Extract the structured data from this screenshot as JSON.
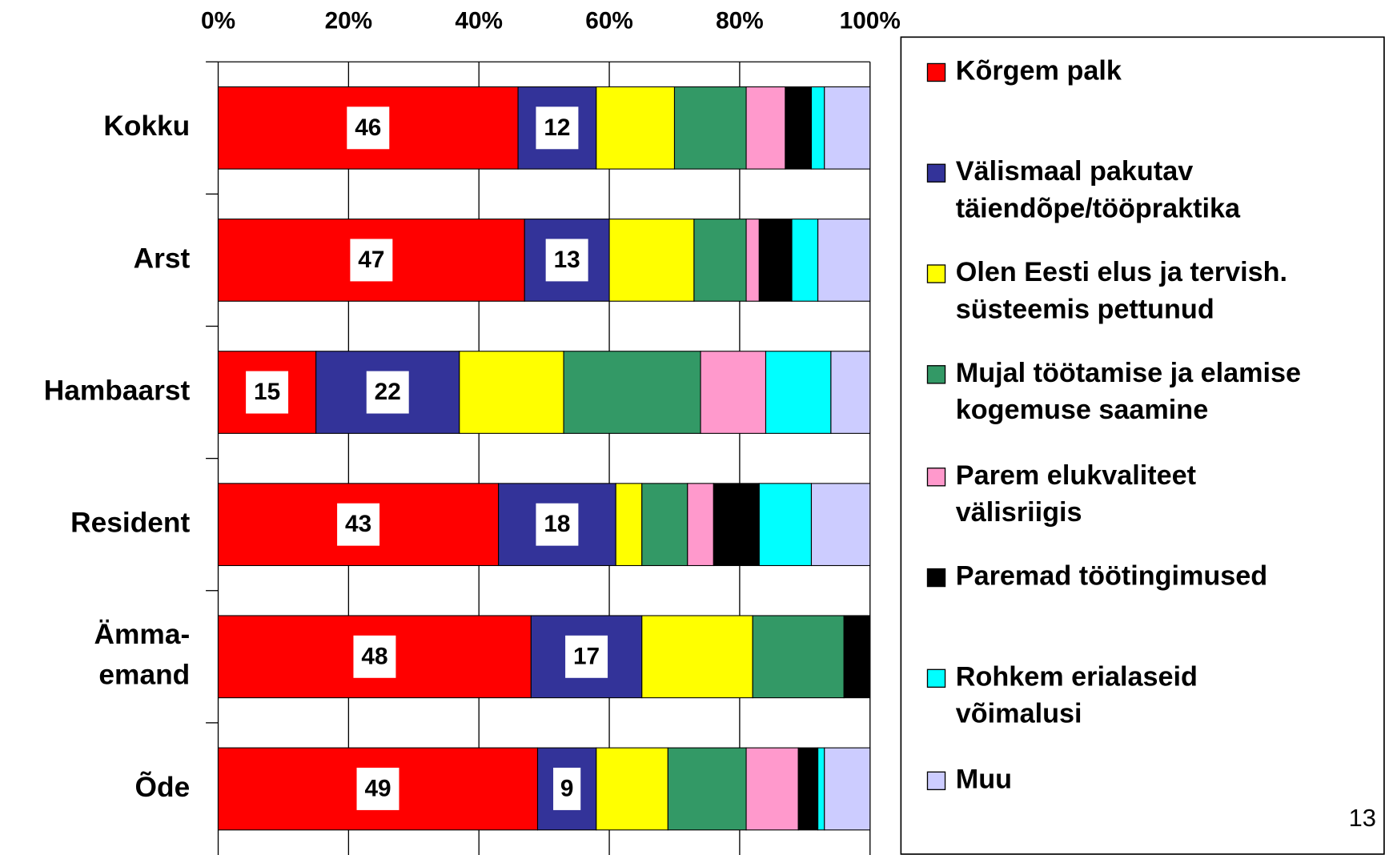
{
  "chart_data": {
    "type": "stacked-bar-horizontal",
    "categories": [
      "Kokku",
      "Arst",
      "Hambaarst",
      "Resident",
      "Ämma-\nemand",
      "Õde"
    ],
    "series": [
      {
        "name": "Kõrgem palk",
        "color": "#ff0000",
        "values": [
          46,
          47,
          15,
          43,
          48,
          49
        ],
        "data_labels": true
      },
      {
        "name": "Välismaal pakutav\ntäiendõpe/tööpraktika",
        "color": "#333399",
        "values": [
          12,
          13,
          22,
          18,
          17,
          9
        ],
        "data_labels": true
      },
      {
        "name": "Olen Eesti elus ja tervish.\nsüsteemis pettunud",
        "color": "#ffff00",
        "values": [
          12,
          13,
          16,
          4,
          17,
          11
        ]
      },
      {
        "name": "Mujal töötamise ja elamise\nkogemuse saamine",
        "color": "#339966",
        "values": [
          11,
          8,
          21,
          7,
          14,
          12
        ]
      },
      {
        "name": "Parem elukvaliteet\nvälisriigis",
        "color": "#ff99cc",
        "values": [
          6,
          2,
          10,
          4,
          0,
          8
        ]
      },
      {
        "name": "Paremad töötingimused",
        "color": "#000000",
        "values": [
          4,
          5,
          0,
          7,
          4,
          3
        ]
      },
      {
        "name": "Rohkem erialaseid\nvõimalusi",
        "color": "#00ffff",
        "values": [
          2,
          4,
          10,
          8,
          0,
          1
        ]
      },
      {
        "name": "Muu",
        "color": "#ccccff",
        "values": [
          7,
          8,
          6,
          9,
          0,
          7
        ]
      }
    ],
    "xlim": [
      0,
      100
    ],
    "xticks": [
      {
        "value": 0,
        "label": "0%"
      },
      {
        "value": 20,
        "label": "20%"
      },
      {
        "value": 40,
        "label": "40%"
      },
      {
        "value": 60,
        "label": "60%"
      },
      {
        "value": 80,
        "label": "80%"
      },
      {
        "value": 100,
        "label": "100%"
      }
    ],
    "grid": true,
    "legend": "right"
  },
  "page_number": "13"
}
